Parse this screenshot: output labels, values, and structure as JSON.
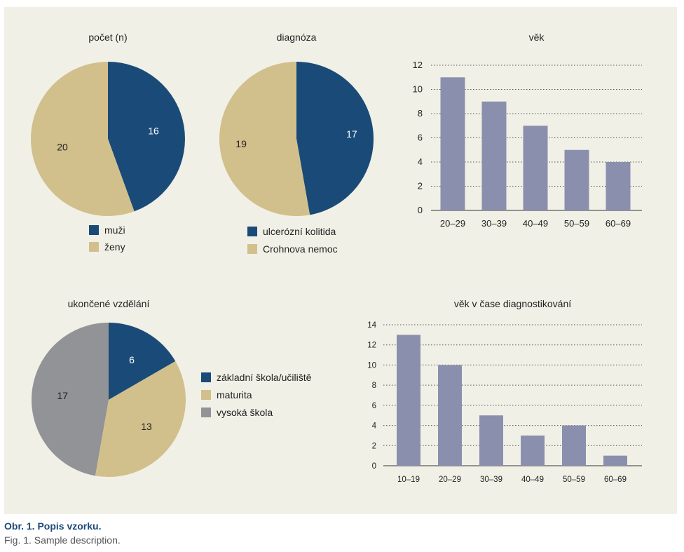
{
  "colors": {
    "navy": "#1a4b78",
    "sand": "#d2c08c",
    "gray": "#929397",
    "bar": "#8b8fae",
    "panel": "#f1f0e6"
  },
  "chart_data": [
    {
      "type": "pie",
      "title": "počet (n)",
      "slices": [
        {
          "label": "muži",
          "value": 16,
          "color": "#1a4b78"
        },
        {
          "label": "ženy",
          "value": 20,
          "color": "#d2c08c"
        }
      ],
      "legend": [
        "muži",
        "ženy"
      ],
      "legend_position": "bottom"
    },
    {
      "type": "pie",
      "title": "diagnóza",
      "slices": [
        {
          "label": "ulcerózní kolitida",
          "value": 17,
          "color": "#1a4b78"
        },
        {
          "label": "Crohnova nemoc",
          "value": 19,
          "color": "#d2c08c"
        }
      ],
      "legend": [
        "ulcerózní kolitida",
        "Crohnova nemoc"
      ],
      "legend_position": "bottom"
    },
    {
      "type": "bar",
      "title": "věk",
      "categories": [
        "20–29",
        "30–39",
        "40–49",
        "50–59",
        "60–69"
      ],
      "values": [
        11,
        9,
        7,
        5,
        4
      ],
      "ylim": [
        0,
        12
      ],
      "yticks": [
        0,
        2,
        4,
        6,
        8,
        10,
        12
      ],
      "grid": "dotted horizontal",
      "xlabel": "",
      "ylabel": ""
    },
    {
      "type": "pie",
      "title": "ukončené vzdělání",
      "slices": [
        {
          "label": "základní škola/učiliště",
          "value": 6,
          "color": "#1a4b78"
        },
        {
          "label": "maturita",
          "value": 13,
          "color": "#d2c08c"
        },
        {
          "label": "vysoká škola",
          "value": 17,
          "color": "#929397"
        }
      ],
      "legend": [
        "základní škola/učiliště",
        "maturita",
        "vysoká škola"
      ],
      "legend_position": "right"
    },
    {
      "type": "bar",
      "title": "věk v čase diagnostikování",
      "categories": [
        "10–19",
        "20–29",
        "30–39",
        "40–49",
        "50–59",
        "60–69"
      ],
      "values": [
        13,
        10,
        5,
        3,
        4,
        1
      ],
      "ylim": [
        0,
        14
      ],
      "yticks": [
        0,
        2,
        4,
        6,
        8,
        10,
        12,
        14
      ],
      "grid": "dotted horizontal",
      "xlabel": "",
      "ylabel": ""
    }
  ],
  "caption": {
    "line1": "Obr. 1. Popis vzorku.",
    "line2": "Fig. 1. Sample description."
  }
}
